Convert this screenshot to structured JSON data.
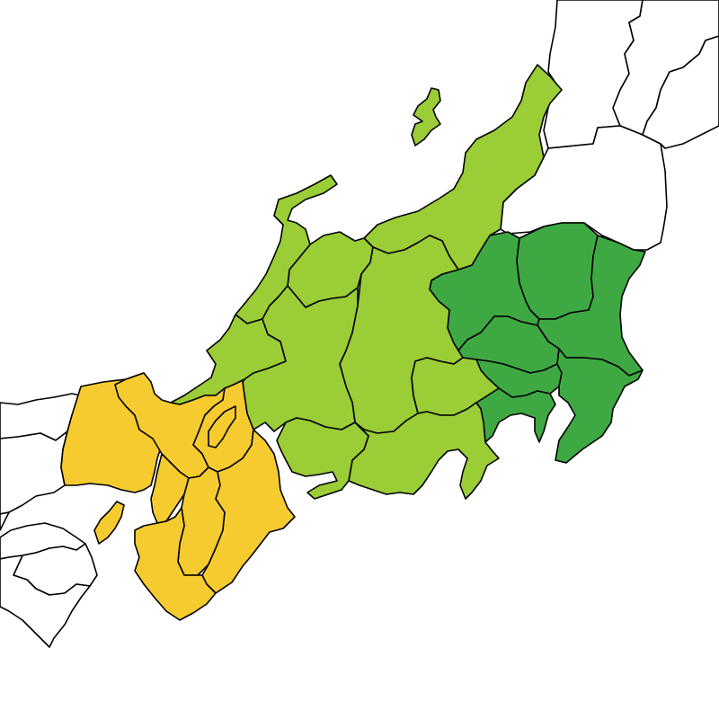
{
  "colors": {
    "background": "#ffffff",
    "outline": "#000000",
    "kanto": "#3ea943",
    "chubu": "#9acd36",
    "kinki": "#f5cb30",
    "other": "#ffffff"
  },
  "regions": [
    {
      "name": "kanto",
      "color_key": "kanto"
    },
    {
      "name": "chubu",
      "color_key": "chubu"
    },
    {
      "name": "kinki",
      "color_key": "kinki"
    },
    {
      "name": "other",
      "color_key": "other"
    }
  ]
}
